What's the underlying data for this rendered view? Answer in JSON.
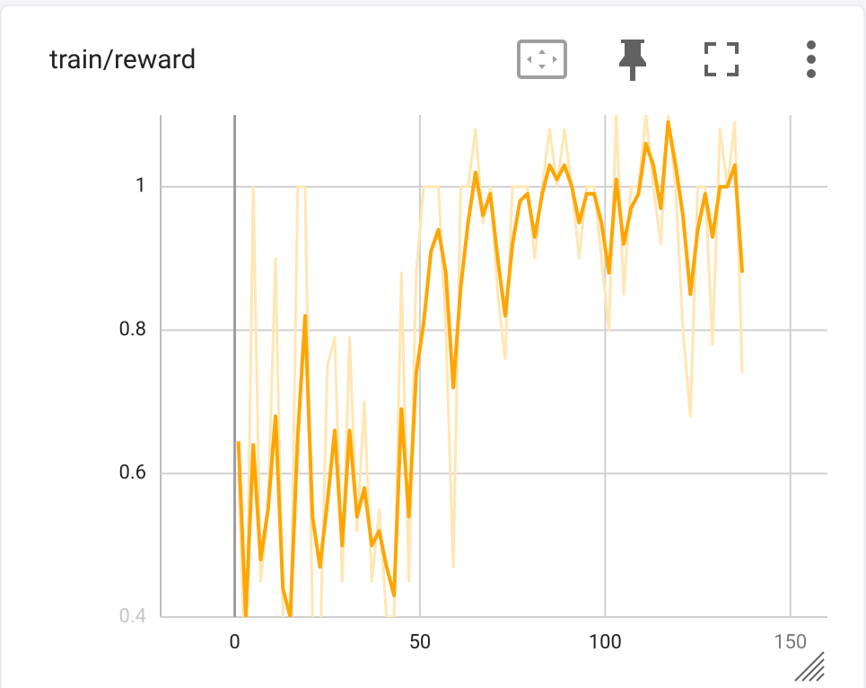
{
  "chart_data": {
    "type": "line",
    "title": "train/reward",
    "x": [
      1,
      3,
      5,
      7,
      9,
      11,
      13,
      15,
      17,
      19,
      21,
      23,
      25,
      27,
      29,
      31,
      33,
      35,
      37,
      39,
      41,
      43,
      45,
      47,
      49,
      51,
      53,
      55,
      57,
      59,
      61,
      63,
      65,
      67,
      69,
      71,
      73,
      75,
      77,
      79,
      81,
      83,
      85,
      87,
      89,
      91,
      93,
      95,
      97,
      99,
      101,
      103,
      105,
      107,
      109,
      111,
      113,
      115,
      117,
      119,
      121,
      123,
      125,
      127,
      129,
      131,
      133,
      135,
      137
    ],
    "series": [
      {
        "color": "#ffe6b3",
        "values": [
          0.6,
          0.3,
          1.0,
          0.45,
          0.55,
          0.9,
          0.4,
          0.35,
          1.0,
          1.0,
          0.4,
          0.35,
          0.75,
          0.79,
          0.45,
          0.79,
          0.52,
          0.7,
          0.45,
          0.55,
          0.4,
          0.4,
          0.88,
          0.45,
          0.88,
          1.0,
          1.0,
          1.0,
          0.8,
          0.47,
          1.0,
          1.0,
          1.08,
          0.95,
          1.0,
          0.85,
          0.76,
          1.0,
          1.0,
          1.0,
          0.9,
          1.0,
          1.08,
          1.0,
          1.08,
          1.0,
          0.9,
          1.0,
          1.0,
          0.9,
          0.8,
          1.1,
          0.85,
          1.0,
          1.0,
          1.1,
          1.0,
          0.92,
          1.1,
          1.0,
          0.8,
          0.68,
          1.0,
          1.0,
          0.78,
          1.08,
          1.0,
          1.09,
          0.74
        ]
      },
      {
        "color": "#ffa500",
        "values": [
          0.645,
          0.4,
          0.64,
          0.48,
          0.55,
          0.68,
          0.44,
          0.4,
          0.65,
          0.82,
          0.54,
          0.47,
          0.56,
          0.66,
          0.5,
          0.66,
          0.54,
          0.58,
          0.5,
          0.52,
          0.47,
          0.43,
          0.69,
          0.54,
          0.74,
          0.81,
          0.91,
          0.94,
          0.88,
          0.72,
          0.86,
          0.95,
          1.02,
          0.96,
          0.99,
          0.9,
          0.82,
          0.92,
          0.98,
          0.99,
          0.93,
          0.99,
          1.03,
          1.01,
          1.03,
          1.0,
          0.95,
          0.99,
          0.99,
          0.95,
          0.88,
          1.01,
          0.92,
          0.97,
          0.99,
          1.06,
          1.03,
          0.97,
          1.09,
          1.03,
          0.96,
          0.85,
          0.94,
          0.99,
          0.93,
          1.0,
          1.0,
          1.03,
          0.88
        ]
      }
    ],
    "xlim": [
      -20,
      160
    ],
    "xticks": [
      0,
      50,
      100,
      150
    ],
    "ylim": [
      0.4,
      1.1
    ],
    "yticks": [
      0.4,
      0.6,
      0.8,
      1
    ],
    "grid": true
  }
}
